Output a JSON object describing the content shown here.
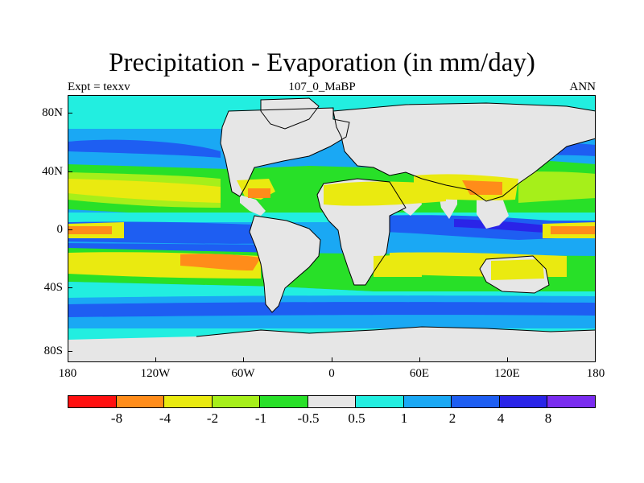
{
  "title": "Precipitation - Evaporation (in mm/day)",
  "subtitle_left": "Expt = texxv",
  "subtitle_center": "107_0_MaBP",
  "subtitle_right": "ANN",
  "lat_labels": [
    "80N",
    "40N",
    "0",
    "40S",
    "80S"
  ],
  "lon_labels": [
    "180",
    "120W",
    "60W",
    "0",
    "60E",
    "120E",
    "180"
  ],
  "colorbar": {
    "colors": [
      "#ff1010",
      "#ff8c1a",
      "#eaea10",
      "#a6ef1a",
      "#28e028",
      "#e6e6e6",
      "#22eee0",
      "#1aa8f4",
      "#1e5ef2",
      "#2a24e8",
      "#7a2cf0"
    ],
    "labels": [
      "-8",
      "-4",
      "-2",
      "-1",
      "-0.5",
      "0.5",
      "1",
      "2",
      "4",
      "8"
    ]
  },
  "map_colors": {
    "land": "#e6e6e6",
    "dry_strong": "#ff8c1a",
    "dry": "#eaea10",
    "dry_light": "#a6ef1a",
    "neutral_dry": "#28e028",
    "wet_light": "#22eee0",
    "wet": "#1aa8f4",
    "wet_strong": "#1e5ef2",
    "wet_very": "#2a24e8"
  }
}
